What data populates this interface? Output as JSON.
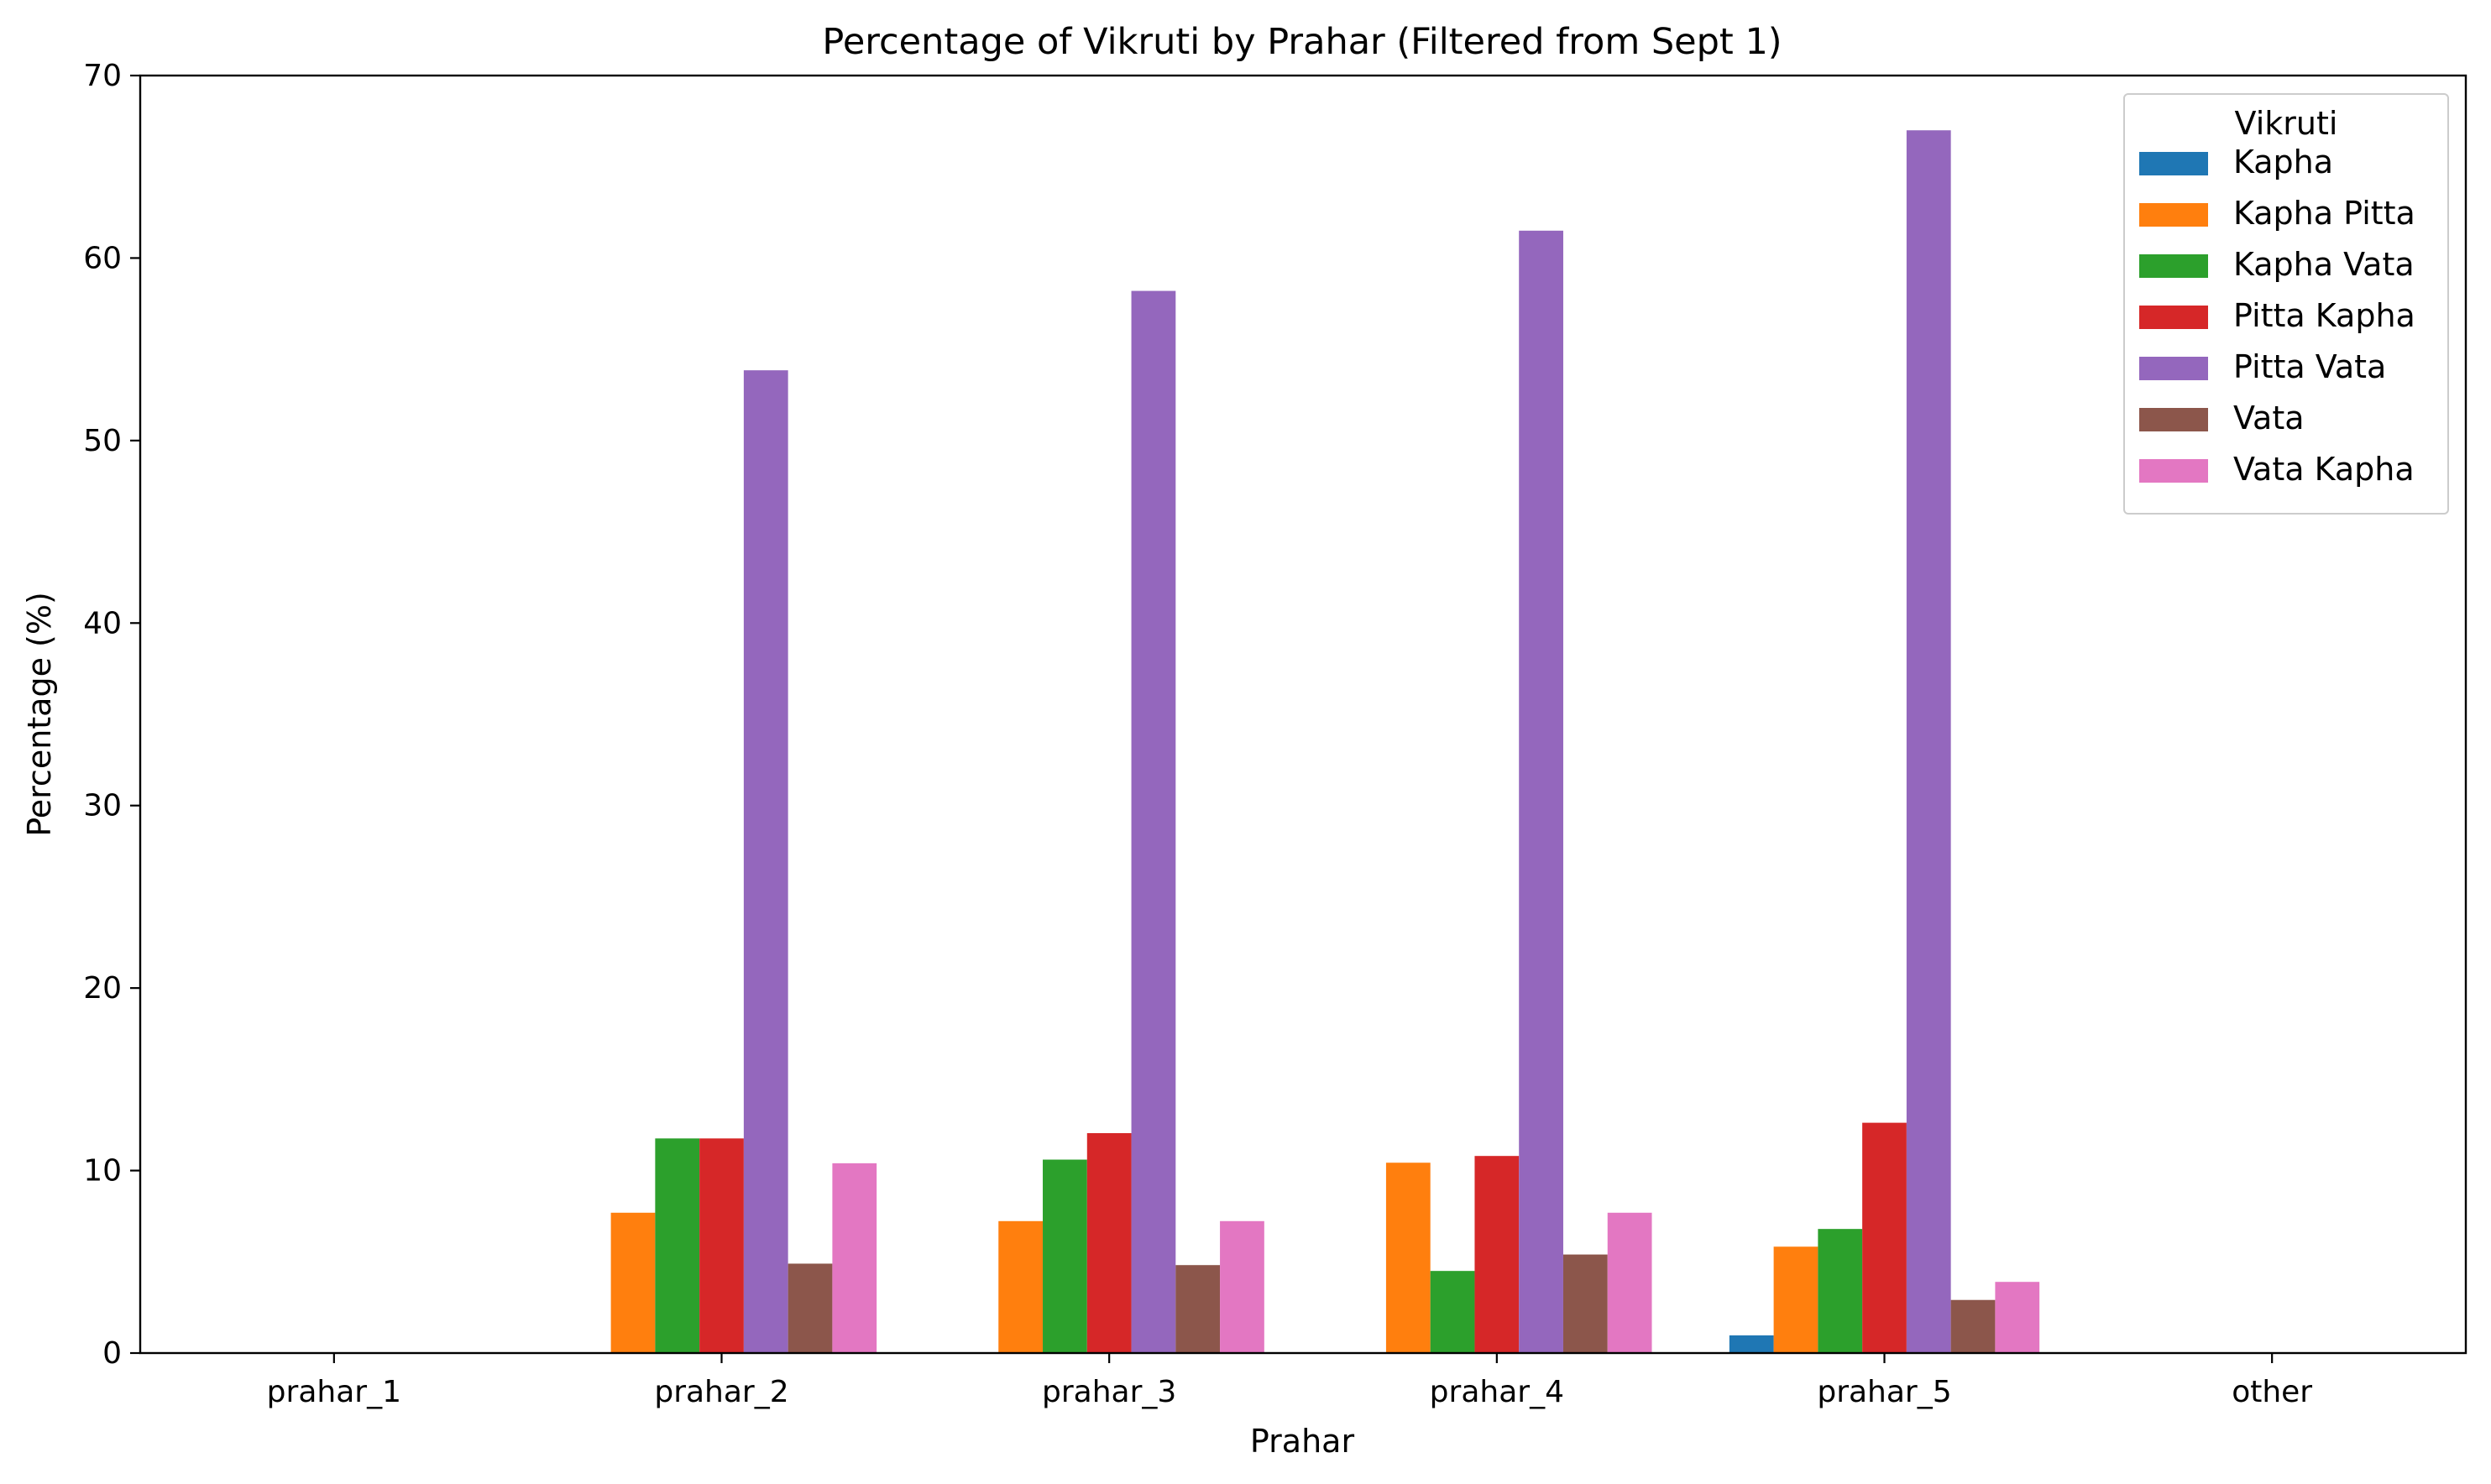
{
  "chart_data": {
    "type": "bar",
    "title": "Percentage of Vikruti by Prahar (Filtered from Sept 1)",
    "xlabel": "Prahar",
    "ylabel": "Percentage (%)",
    "categories": [
      "prahar_1",
      "prahar_2",
      "prahar_3",
      "prahar_4",
      "prahar_5",
      "other"
    ],
    "ylim": [
      0,
      70
    ],
    "yticks": [
      0,
      10,
      20,
      30,
      40,
      50,
      60,
      70
    ],
    "grid": false,
    "legend": {
      "title": "Vikruti",
      "placement": "top-right"
    },
    "series": [
      {
        "name": "Kapha",
        "color": "#1f77b4",
        "values": [
          0,
          0,
          0,
          0,
          0.97,
          0
        ]
      },
      {
        "name": "Kapha Pitta",
        "color": "#ff7f0e",
        "values": [
          0,
          7.69,
          7.23,
          10.43,
          5.83,
          0
        ]
      },
      {
        "name": "Kapha Vata",
        "color": "#2ca02c",
        "values": [
          0,
          11.76,
          10.6,
          4.5,
          6.8,
          0
        ]
      },
      {
        "name": "Pitta Kapha",
        "color": "#d62728",
        "values": [
          0,
          11.76,
          12.05,
          10.8,
          12.62,
          0
        ]
      },
      {
        "name": "Pitta Vata",
        "color": "#9467bd",
        "values": [
          0,
          53.85,
          58.2,
          61.5,
          67.0,
          0
        ]
      },
      {
        "name": "Vata",
        "color": "#8c564b",
        "values": [
          0,
          4.9,
          4.82,
          5.4,
          2.91,
          0
        ]
      },
      {
        "name": "Vata Kapha",
        "color": "#e377c2",
        "values": [
          0,
          10.4,
          7.23,
          7.69,
          3.9,
          0
        ]
      }
    ]
  }
}
